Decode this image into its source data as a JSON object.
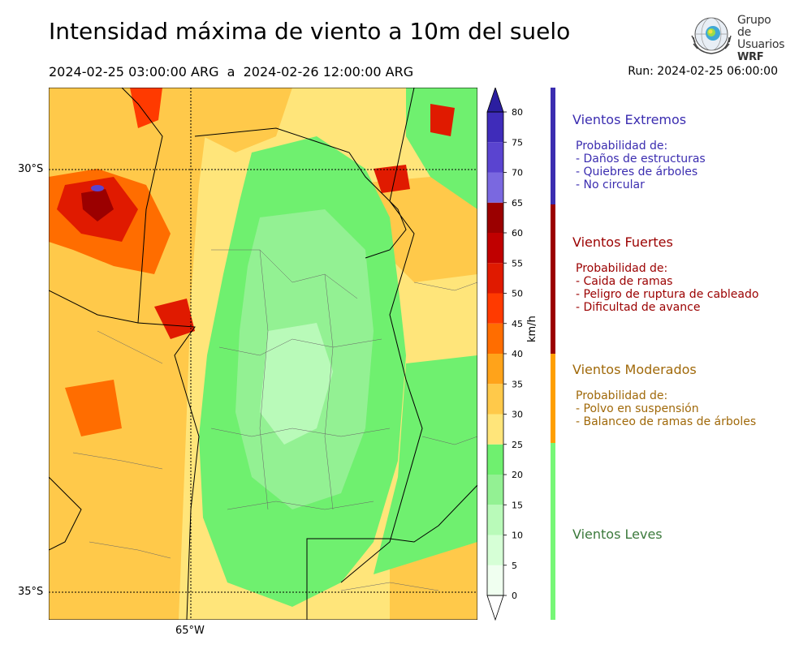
{
  "header": {
    "title": "Intensidad máxima de viento a 10m del suelo",
    "period": "2024-02-25 03:00:00 ARG  a  2024-02-26 12:00:00 ARG",
    "run": "Run: 2024-02-25 06:00:00"
  },
  "logo": {
    "line1": "Grupo de",
    "line2": "Usuarios",
    "line3": "WRF"
  },
  "map": {
    "lat_labels": [
      "30°S",
      "35°S"
    ],
    "lon_labels": [
      "65°W"
    ]
  },
  "colorbar": {
    "unit": "km/h",
    "ticks": [
      "0",
      "5",
      "10",
      "15",
      "20",
      "25",
      "30",
      "35",
      "40",
      "45",
      "50",
      "55",
      "60",
      "65",
      "70",
      "75",
      "80"
    ],
    "colors": [
      "#f0fff0",
      "#d6ffd6",
      "#b9fab9",
      "#93f193",
      "#6ff06f",
      "#ffe57a",
      "#ffc94a",
      "#ffa31a",
      "#ff6d00",
      "#ff3a00",
      "#e01a00",
      "#c00000",
      "#9b0000",
      "#7a68e0",
      "#5a44d0",
      "#3f2cba",
      "#2b1ea0"
    ]
  },
  "legend": [
    {
      "title": "Vientos Extremos",
      "color": "#3b2db0",
      "lines": [
        "Probabilidad de:",
        "- Daños de estructuras",
        "- Quiebres de árboles",
        "- No circular"
      ]
    },
    {
      "title": "Vientos Fuertes",
      "color": "#9b0000",
      "lines": [
        "Probabilidad de:",
        "- Caida de ramas",
        "- Peligro de ruptura de cableado",
        "- Dificultad de avance"
      ]
    },
    {
      "title": "Vientos Moderados",
      "color": "#ff9f00",
      "text_color": "#a0690a",
      "lines": [
        "Probabilidad de:",
        "- Polvo en suspensión",
        "- Balanceo de ramas de árboles"
      ]
    },
    {
      "title": "Vientos Leves",
      "color": "#77f777",
      "text_color": "#3c7a3c",
      "lines": []
    }
  ]
}
